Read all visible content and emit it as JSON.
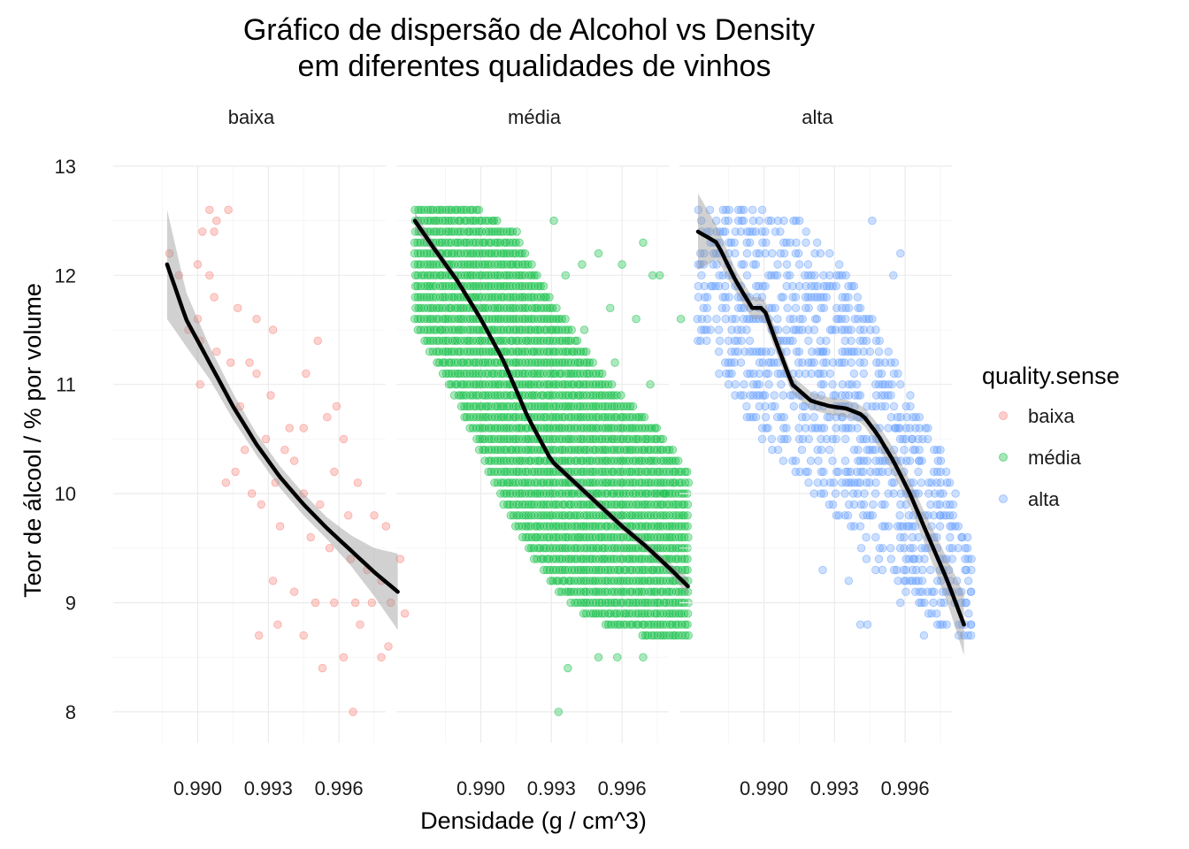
{
  "chart_data": {
    "type": "scatter",
    "title": [
      "Gráfico de dispersão de Alcohol vs Density",
      "em diferentes qualidades de vinhos"
    ],
    "xlabel": "Densidade (g / cm^3)",
    "ylabel": "Teor de álcool / % por volume",
    "xlim": [
      0.9872,
      0.9998
    ],
    "ylim": [
      7.85,
      13.1
    ],
    "x_ticks": [
      0.99,
      0.993,
      0.996
    ],
    "x_tick_labels": [
      "0.990",
      "0.993",
      "0.996"
    ],
    "y_ticks": [
      8,
      9,
      10,
      11,
      12,
      13
    ],
    "y_tick_labels": [
      "8",
      "9",
      "10",
      "11",
      "12",
      "13"
    ],
    "grid": true,
    "legend": {
      "title": "quality.sense",
      "placement": "right",
      "entries": [
        {
          "label": "baixa",
          "color": "#F8766D"
        },
        {
          "label": "média",
          "color": "#00BA38"
        },
        {
          "label": "alta",
          "color": "#619CFF"
        }
      ]
    },
    "panels": [
      {
        "name": "baixa",
        "color": "#F8766D",
        "smooth": {
          "x": [
            0.9887,
            0.9895,
            0.9905,
            0.9915,
            0.9925,
            0.9935,
            0.9945,
            0.9955,
            0.9965,
            0.9975,
            0.9985
          ],
          "y": [
            12.1,
            11.6,
            11.2,
            10.8,
            10.45,
            10.15,
            9.9,
            9.68,
            9.48,
            9.28,
            9.1
          ],
          "ci_half": [
            0.5,
            0.25,
            0.15,
            0.12,
            0.1,
            0.1,
            0.1,
            0.1,
            0.14,
            0.22,
            0.35
          ]
        },
        "points": [
          [
            0.9905,
            12.6
          ],
          [
            0.9913,
            12.6
          ],
          [
            0.9908,
            12.5
          ],
          [
            0.9902,
            12.4
          ],
          [
            0.9907,
            12.4
          ],
          [
            0.9888,
            12.2
          ],
          [
            0.99,
            12.1
          ],
          [
            0.9892,
            12.0
          ],
          [
            0.9905,
            12.0
          ],
          [
            0.9907,
            11.8
          ],
          [
            0.9917,
            11.7
          ],
          [
            0.99,
            11.6
          ],
          [
            0.9925,
            11.6
          ],
          [
            0.9932,
            11.5
          ],
          [
            0.9896,
            11.5
          ],
          [
            0.9901,
            11.4
          ],
          [
            0.9908,
            11.3
          ],
          [
            0.9914,
            11.2
          ],
          [
            0.9922,
            11.2
          ],
          [
            0.9901,
            11.0
          ],
          [
            0.9925,
            11.1
          ],
          [
            0.9946,
            11.1
          ],
          [
            0.9951,
            11.4
          ],
          [
            0.9918,
            10.8
          ],
          [
            0.9931,
            10.9
          ],
          [
            0.9945,
            10.6
          ],
          [
            0.9955,
            10.7
          ],
          [
            0.9962,
            10.5
          ],
          [
            0.9929,
            10.5
          ],
          [
            0.9937,
            10.4
          ],
          [
            0.9941,
            10.3
          ],
          [
            0.9912,
            10.1
          ],
          [
            0.9923,
            10.0
          ],
          [
            0.9933,
            10.1
          ],
          [
            0.9945,
            10.0
          ],
          [
            0.9952,
            9.9
          ],
          [
            0.9958,
            10.2
          ],
          [
            0.9964,
            9.8
          ],
          [
            0.9927,
            9.9
          ],
          [
            0.9935,
            9.7
          ],
          [
            0.9948,
            9.6
          ],
          [
            0.9956,
            9.5
          ],
          [
            0.9965,
            9.4
          ],
          [
            0.9972,
            9.3
          ],
          [
            0.9978,
            9.2
          ],
          [
            0.9932,
            9.2
          ],
          [
            0.9941,
            9.1
          ],
          [
            0.995,
            9.0
          ],
          [
            0.9958,
            9.0
          ],
          [
            0.9967,
            9.0
          ],
          [
            0.9974,
            9.0
          ],
          [
            0.9982,
            9.0
          ],
          [
            0.9988,
            8.9
          ],
          [
            0.9934,
            8.8
          ],
          [
            0.9945,
            8.7
          ],
          [
            0.9926,
            8.7
          ],
          [
            0.9969,
            8.8
          ],
          [
            0.9981,
            8.6
          ],
          [
            0.9962,
            8.5
          ],
          [
            0.9978,
            8.5
          ],
          [
            0.9953,
            8.4
          ],
          [
            0.9966,
            8.0
          ],
          [
            0.998,
            9.7
          ],
          [
            0.9975,
            9.8
          ],
          [
            0.9968,
            10.1
          ],
          [
            0.9959,
            10.8
          ],
          [
            0.9939,
            10.6
          ],
          [
            0.992,
            10.4
          ],
          [
            0.9916,
            10.2
          ],
          [
            0.9986,
            9.4
          ]
        ]
      },
      {
        "name": "média",
        "color": "#00BA38",
        "smooth": {
          "x": [
            0.9872,
            0.988,
            0.989,
            0.99,
            0.991,
            0.992,
            0.993,
            0.994,
            0.995,
            0.996,
            0.997,
            0.998,
            0.9988
          ],
          "y": [
            12.5,
            12.25,
            11.95,
            11.6,
            11.2,
            10.7,
            10.3,
            10.1,
            9.9,
            9.7,
            9.52,
            9.32,
            9.15
          ],
          "ci_half": [
            0.08,
            0.05,
            0.04,
            0.04,
            0.04,
            0.04,
            0.04,
            0.04,
            0.04,
            0.04,
            0.04,
            0.05,
            0.08
          ]
        },
        "band": {
          "dx": [
            0.9872,
            0.9885,
            0.99,
            0.9915,
            0.993,
            0.9945,
            0.996,
            0.9975,
            0.9988
          ],
          "ymin": [
            11.6,
            11.1,
            10.4,
            9.7,
            9.2,
            8.9,
            8.8,
            8.7,
            8.7
          ],
          "ymax": [
            12.6,
            12.6,
            12.6,
            12.4,
            11.8,
            11.3,
            10.9,
            10.6,
            10.2
          ]
        },
        "points": [
          [
            0.9933,
            8.0
          ],
          [
            0.995,
            8.5
          ],
          [
            0.9958,
            8.5
          ],
          [
            0.9969,
            8.5
          ],
          [
            0.9937,
            8.4
          ],
          [
            0.9972,
            11.0
          ],
          [
            0.9976,
            12.0
          ],
          [
            0.9973,
            12.0
          ],
          [
            0.9985,
            11.6
          ],
          [
            0.9966,
            11.6
          ],
          [
            0.9955,
            11.7
          ],
          [
            0.996,
            12.1
          ],
          [
            0.9969,
            12.3
          ],
          [
            0.9957,
            11.2
          ],
          [
            0.995,
            12.2
          ],
          [
            0.9943,
            12.1
          ],
          [
            0.9931,
            12.5
          ],
          [
            0.9936,
            12.0
          ],
          [
            0.9944,
            11.5
          ],
          [
            0.9978,
            10.0
          ]
        ]
      },
      {
        "name": "alta",
        "color": "#619CFF",
        "smooth": {
          "x": [
            0.9872,
            0.988,
            0.9888,
            0.9895,
            0.99,
            0.9905,
            0.9912,
            0.992,
            0.9928,
            0.9935,
            0.9942,
            0.9948,
            0.9955,
            0.9962,
            0.997,
            0.9978,
            0.9985
          ],
          "y": [
            12.4,
            12.3,
            11.95,
            11.7,
            11.7,
            11.4,
            11.0,
            10.85,
            10.8,
            10.78,
            10.72,
            10.55,
            10.3,
            10.0,
            9.6,
            9.2,
            8.8
          ],
          "ci_half": [
            0.35,
            0.15,
            0.1,
            0.1,
            0.1,
            0.1,
            0.08,
            0.08,
            0.08,
            0.08,
            0.08,
            0.1,
            0.12,
            0.12,
            0.15,
            0.2,
            0.28
          ]
        },
        "band": {
          "dx": [
            0.9872,
            0.9885,
            0.99,
            0.9915,
            0.993,
            0.9945,
            0.996,
            0.9975,
            0.9988
          ],
          "ymin": [
            11.4,
            11.0,
            10.5,
            10.2,
            9.8,
            9.4,
            9.1,
            8.8,
            8.7
          ],
          "ymax": [
            12.6,
            12.6,
            12.6,
            12.5,
            12.2,
            11.7,
            11.0,
            10.4,
            9.6
          ]
        },
        "points": [
          [
            0.9946,
            12.5
          ],
          [
            0.9955,
            12.0
          ],
          [
            0.9958,
            12.2
          ],
          [
            0.9962,
            10.6
          ],
          [
            0.9966,
            10.3
          ],
          [
            0.997,
            10.0
          ],
          [
            0.9975,
            9.8
          ],
          [
            0.9979,
            9.5
          ],
          [
            0.9982,
            9.2
          ],
          [
            0.9986,
            9.0
          ],
          [
            0.9988,
            8.8
          ],
          [
            0.9958,
            9.0
          ],
          [
            0.9968,
            8.7
          ],
          [
            0.9964,
            9.4
          ],
          [
            0.9972,
            9.0
          ],
          [
            0.9944,
            8.8
          ],
          [
            0.9936,
            9.2
          ],
          [
            0.9925,
            9.3
          ],
          [
            0.9941,
            8.8
          ],
          [
            0.9925,
            11.3
          ],
          [
            0.9929,
            11.5
          ],
          [
            0.9933,
            10.7
          ],
          [
            0.9938,
            10.0
          ],
          [
            0.9953,
            11.0
          ],
          [
            0.9956,
            10.6
          ],
          [
            0.9963,
            10.5
          ],
          [
            0.9974,
            10.3
          ],
          [
            0.9984,
            9.6
          ],
          [
            0.9986,
            9.3
          ],
          [
            0.9988,
            9.1
          ],
          [
            0.9981,
            9.0
          ],
          [
            0.9985,
            8.7
          ]
        ]
      }
    ]
  }
}
